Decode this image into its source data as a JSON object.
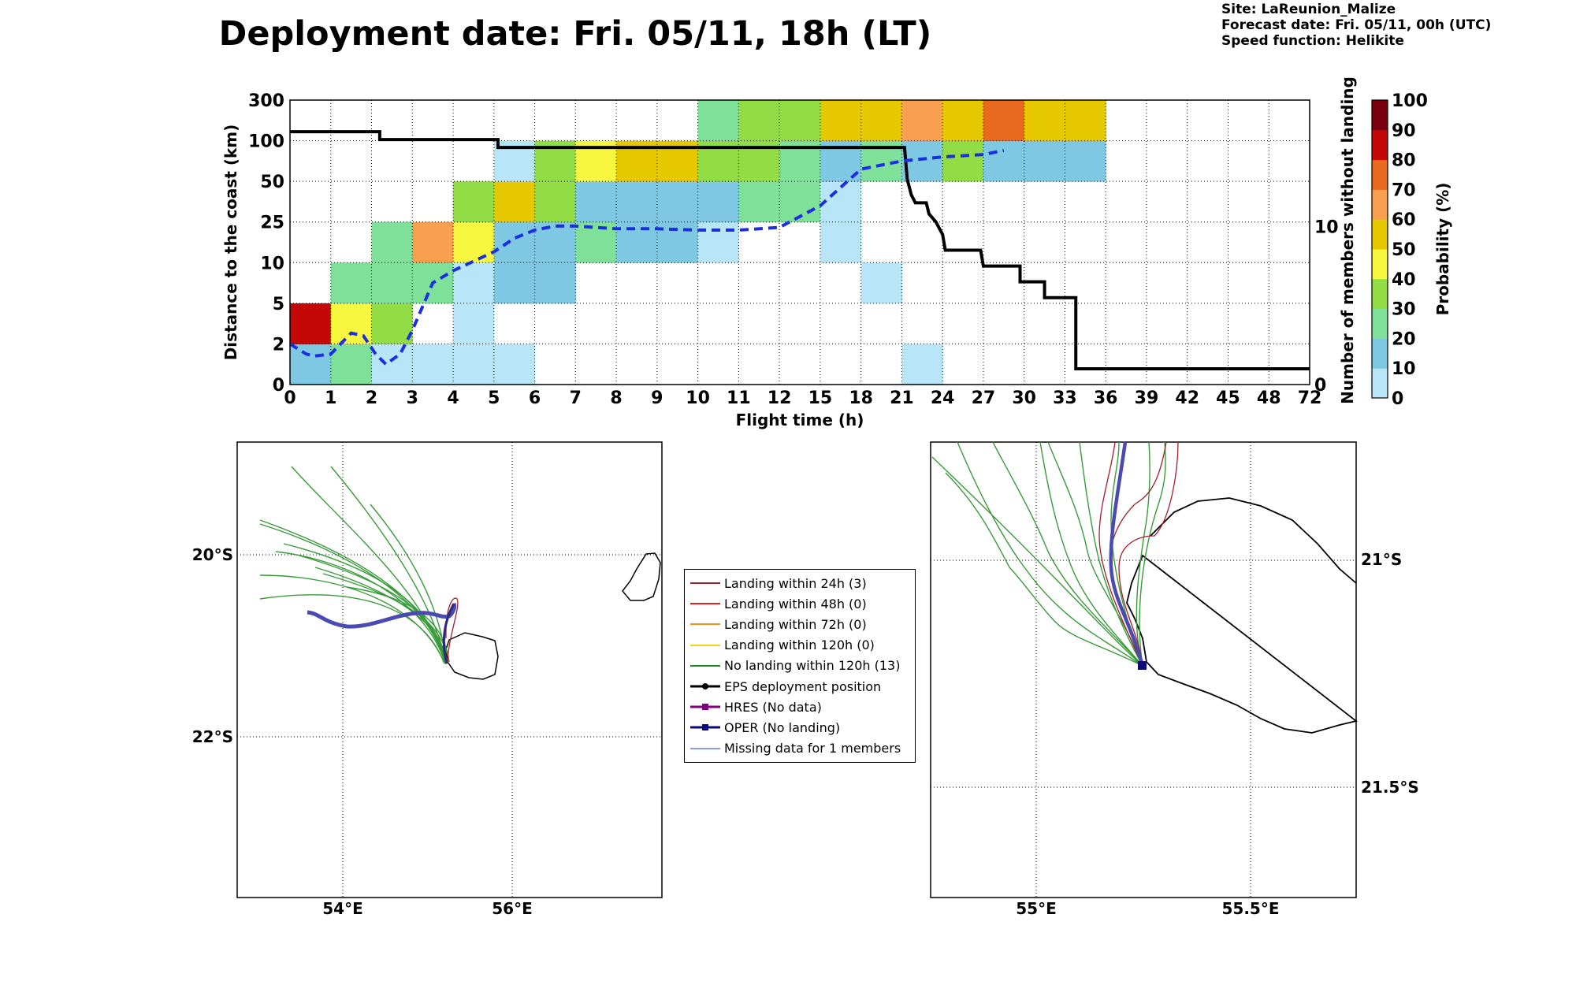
{
  "title": "Deployment date: Fri. 05/11, 18h (LT)",
  "meta": {
    "site": "Site: LaReunion_Malize",
    "forecast": "Forecast date: Fri. 05/11, 00h (UTC)",
    "speed": "Speed function: Helikite"
  },
  "chart_data": [
    {
      "type": "heatmap",
      "xlabel": "Flight time (h)",
      "ylabel": "Distance to the coast (km)",
      "y2label": "Number of members without landing",
      "x_ticks": [
        "0",
        "1",
        "2",
        "3",
        "4",
        "5",
        "6",
        "7",
        "8",
        "9",
        "10",
        "11",
        "12",
        "15",
        "18",
        "21",
        "24",
        "27",
        "30",
        "33",
        "36",
        "39",
        "42",
        "45",
        "48",
        "72"
      ],
      "y_ticks": [
        "0",
        "2",
        "5",
        "10",
        "25",
        "50",
        "100",
        "300"
      ],
      "y2_ticks": [
        "0",
        "10"
      ],
      "colorbar": {
        "label": "Probability (%)",
        "ticks": [
          "0",
          "10",
          "20",
          "30",
          "40",
          "50",
          "60",
          "70",
          "80",
          "90",
          "100"
        ],
        "colors": [
          "#b8e6f8",
          "#7ec8e3",
          "#7fe09a",
          "#92dc46",
          "#f7f740",
          "#e5c800",
          "#f9a050",
          "#e86a1e",
          "#c40808",
          "#7a0010"
        ]
      },
      "cells": [
        {
          "x": 0,
          "y": 0,
          "p": 10
        },
        {
          "x": 1,
          "y": 0,
          "p": 20
        },
        {
          "x": 2,
          "y": 0,
          "p": 0
        },
        {
          "x": 3,
          "y": 0,
          "p": 0
        },
        {
          "x": 4,
          "y": 0,
          "p": 0
        },
        {
          "x": 5,
          "y": 0,
          "p": 0
        },
        {
          "x": 15,
          "y": 0,
          "p": 0
        },
        {
          "x": 0,
          "y": 1,
          "p": 80
        },
        {
          "x": 1,
          "y": 1,
          "p": 40
        },
        {
          "x": 2,
          "y": 1,
          "p": 30
        },
        {
          "x": 4,
          "y": 1,
          "p": 0
        },
        {
          "x": 1,
          "y": 2,
          "p": 20
        },
        {
          "x": 2,
          "y": 2,
          "p": 20
        },
        {
          "x": 3,
          "y": 2,
          "p": 20
        },
        {
          "x": 4,
          "y": 2,
          "p": 0
        },
        {
          "x": 5,
          "y": 2,
          "p": 10
        },
        {
          "x": 6,
          "y": 2,
          "p": 10
        },
        {
          "x": 14,
          "y": 2,
          "p": 0
        },
        {
          "x": 2,
          "y": 3,
          "p": 20
        },
        {
          "x": 3,
          "y": 3,
          "p": 60
        },
        {
          "x": 4,
          "y": 3,
          "p": 40
        },
        {
          "x": 5,
          "y": 3,
          "p": 10
        },
        {
          "x": 6,
          "y": 3,
          "p": 10
        },
        {
          "x": 7,
          "y": 3,
          "p": 20
        },
        {
          "x": 8,
          "y": 3,
          "p": 10
        },
        {
          "x": 9,
          "y": 3,
          "p": 10
        },
        {
          "x": 10,
          "y": 3,
          "p": 0
        },
        {
          "x": 13,
          "y": 3,
          "p": 0
        },
        {
          "x": 4,
          "y": 4,
          "p": 30
        },
        {
          "x": 5,
          "y": 4,
          "p": 50
        },
        {
          "x": 6,
          "y": 4,
          "p": 30
        },
        {
          "x": 7,
          "y": 4,
          "p": 10
        },
        {
          "x": 8,
          "y": 4,
          "p": 10
        },
        {
          "x": 9,
          "y": 4,
          "p": 10
        },
        {
          "x": 10,
          "y": 4,
          "p": 10
        },
        {
          "x": 11,
          "y": 4,
          "p": 20
        },
        {
          "x": 12,
          "y": 4,
          "p": 20
        },
        {
          "x": 13,
          "y": 4,
          "p": 0
        },
        {
          "x": 5,
          "y": 5,
          "p": 0
        },
        {
          "x": 6,
          "y": 5,
          "p": 30
        },
        {
          "x": 7,
          "y": 5,
          "p": 40
        },
        {
          "x": 8,
          "y": 5,
          "p": 50
        },
        {
          "x": 9,
          "y": 5,
          "p": 50
        },
        {
          "x": 10,
          "y": 5,
          "p": 30
        },
        {
          "x": 11,
          "y": 5,
          "p": 30
        },
        {
          "x": 12,
          "y": 5,
          "p": 20
        },
        {
          "x": 13,
          "y": 5,
          "p": 10
        },
        {
          "x": 14,
          "y": 5,
          "p": 20
        },
        {
          "x": 15,
          "y": 5,
          "p": 10
        },
        {
          "x": 16,
          "y": 5,
          "p": 30
        },
        {
          "x": 17,
          "y": 5,
          "p": 10
        },
        {
          "x": 18,
          "y": 5,
          "p": 10
        },
        {
          "x": 19,
          "y": 5,
          "p": 10
        },
        {
          "x": 10,
          "y": 6,
          "p": 20
        },
        {
          "x": 11,
          "y": 6,
          "p": 30
        },
        {
          "x": 12,
          "y": 6,
          "p": 30
        },
        {
          "x": 13,
          "y": 6,
          "p": 50
        },
        {
          "x": 14,
          "y": 6,
          "p": 50
        },
        {
          "x": 15,
          "y": 6,
          "p": 60
        },
        {
          "x": 16,
          "y": 6,
          "p": 50
        },
        {
          "x": 17,
          "y": 6,
          "p": 70
        },
        {
          "x": 18,
          "y": 6,
          "p": 50
        },
        {
          "x": 19,
          "y": 6,
          "p": 50
        }
      ],
      "mean_distance_line": {
        "color": "#1b2fe0",
        "style": "dashed",
        "points": [
          [
            0,
            2
          ],
          [
            0.4,
            1.5
          ],
          [
            0.6,
            1.4
          ],
          [
            1,
            1.5
          ],
          [
            1.5,
            2.8
          ],
          [
            1.8,
            2.6
          ],
          [
            2.1,
            1.5
          ],
          [
            2.35,
            1
          ],
          [
            2.7,
            1.5
          ],
          [
            3,
            3
          ],
          [
            3.5,
            7.5
          ],
          [
            4,
            9
          ],
          [
            4.5,
            10.5
          ],
          [
            5,
            14
          ],
          [
            5.5,
            19
          ],
          [
            6,
            22
          ],
          [
            6.5,
            23.5
          ],
          [
            7,
            23.5
          ],
          [
            8,
            22.5
          ],
          [
            9,
            22.5
          ],
          [
            10,
            22
          ],
          [
            11,
            22
          ],
          [
            12,
            23
          ],
          [
            15,
            35
          ],
          [
            18,
            65
          ],
          [
            21,
            75
          ],
          [
            24,
            80
          ],
          [
            27,
            83
          ],
          [
            28.5,
            88
          ]
        ]
      },
      "members_step_line": {
        "color": "#000000",
        "points": [
          [
            0,
            16
          ],
          [
            2.2,
            16
          ],
          [
            2.2,
            15.5
          ],
          [
            5.1,
            15.5
          ],
          [
            5.1,
            15
          ],
          [
            21.2,
            15
          ],
          [
            21.4,
            13
          ],
          [
            21.7,
            12
          ],
          [
            22,
            11.5
          ],
          [
            22.8,
            11.5
          ],
          [
            23,
            10.8
          ],
          [
            23.5,
            10.3
          ],
          [
            24,
            9.5
          ],
          [
            24.2,
            8.5
          ],
          [
            26.8,
            8.5
          ],
          [
            27,
            7.5
          ],
          [
            29.7,
            7.5
          ],
          [
            29.7,
            6.5
          ],
          [
            31.5,
            6.5
          ],
          [
            31.5,
            5.5
          ],
          [
            33.8,
            5.5
          ],
          [
            33.8,
            1
          ],
          [
            72,
            1
          ]
        ]
      }
    },
    {
      "type": "map",
      "name": "overview",
      "lon_ticks": [
        "54°E",
        "56°E"
      ],
      "lat_ticks": [
        "20°S",
        "22°S"
      ]
    },
    {
      "type": "map",
      "name": "zoom",
      "lon_ticks": [
        "55°E",
        "55.5°E"
      ],
      "lat_ticks": [
        "21°S",
        "21.5°S"
      ]
    }
  ],
  "legend": [
    {
      "label": "Landing within 24h (3)",
      "color": "#a0202a",
      "marker": "line"
    },
    {
      "label": "Landing within 48h (0)",
      "color": "#ee1c1c",
      "marker": "line"
    },
    {
      "label": "Landing within 72h (0)",
      "color": "#f58c1c",
      "marker": "line"
    },
    {
      "label": "Landing within 120h (0)",
      "color": "#f0d020",
      "marker": "line"
    },
    {
      "label": "No landing within 120h (13)",
      "color": "#1f8a1f",
      "marker": "line"
    },
    {
      "label": "EPS deployment position",
      "color": "#000000",
      "marker": "circle"
    },
    {
      "label": "HRES (No data)",
      "color": "#800080",
      "marker": "square"
    },
    {
      "label": "OPER (No landing)",
      "color": "#0a0a7a",
      "marker": "square"
    },
    {
      "label": "Missing data for 1 members",
      "color": "#4a5af0",
      "marker": "thin"
    }
  ]
}
